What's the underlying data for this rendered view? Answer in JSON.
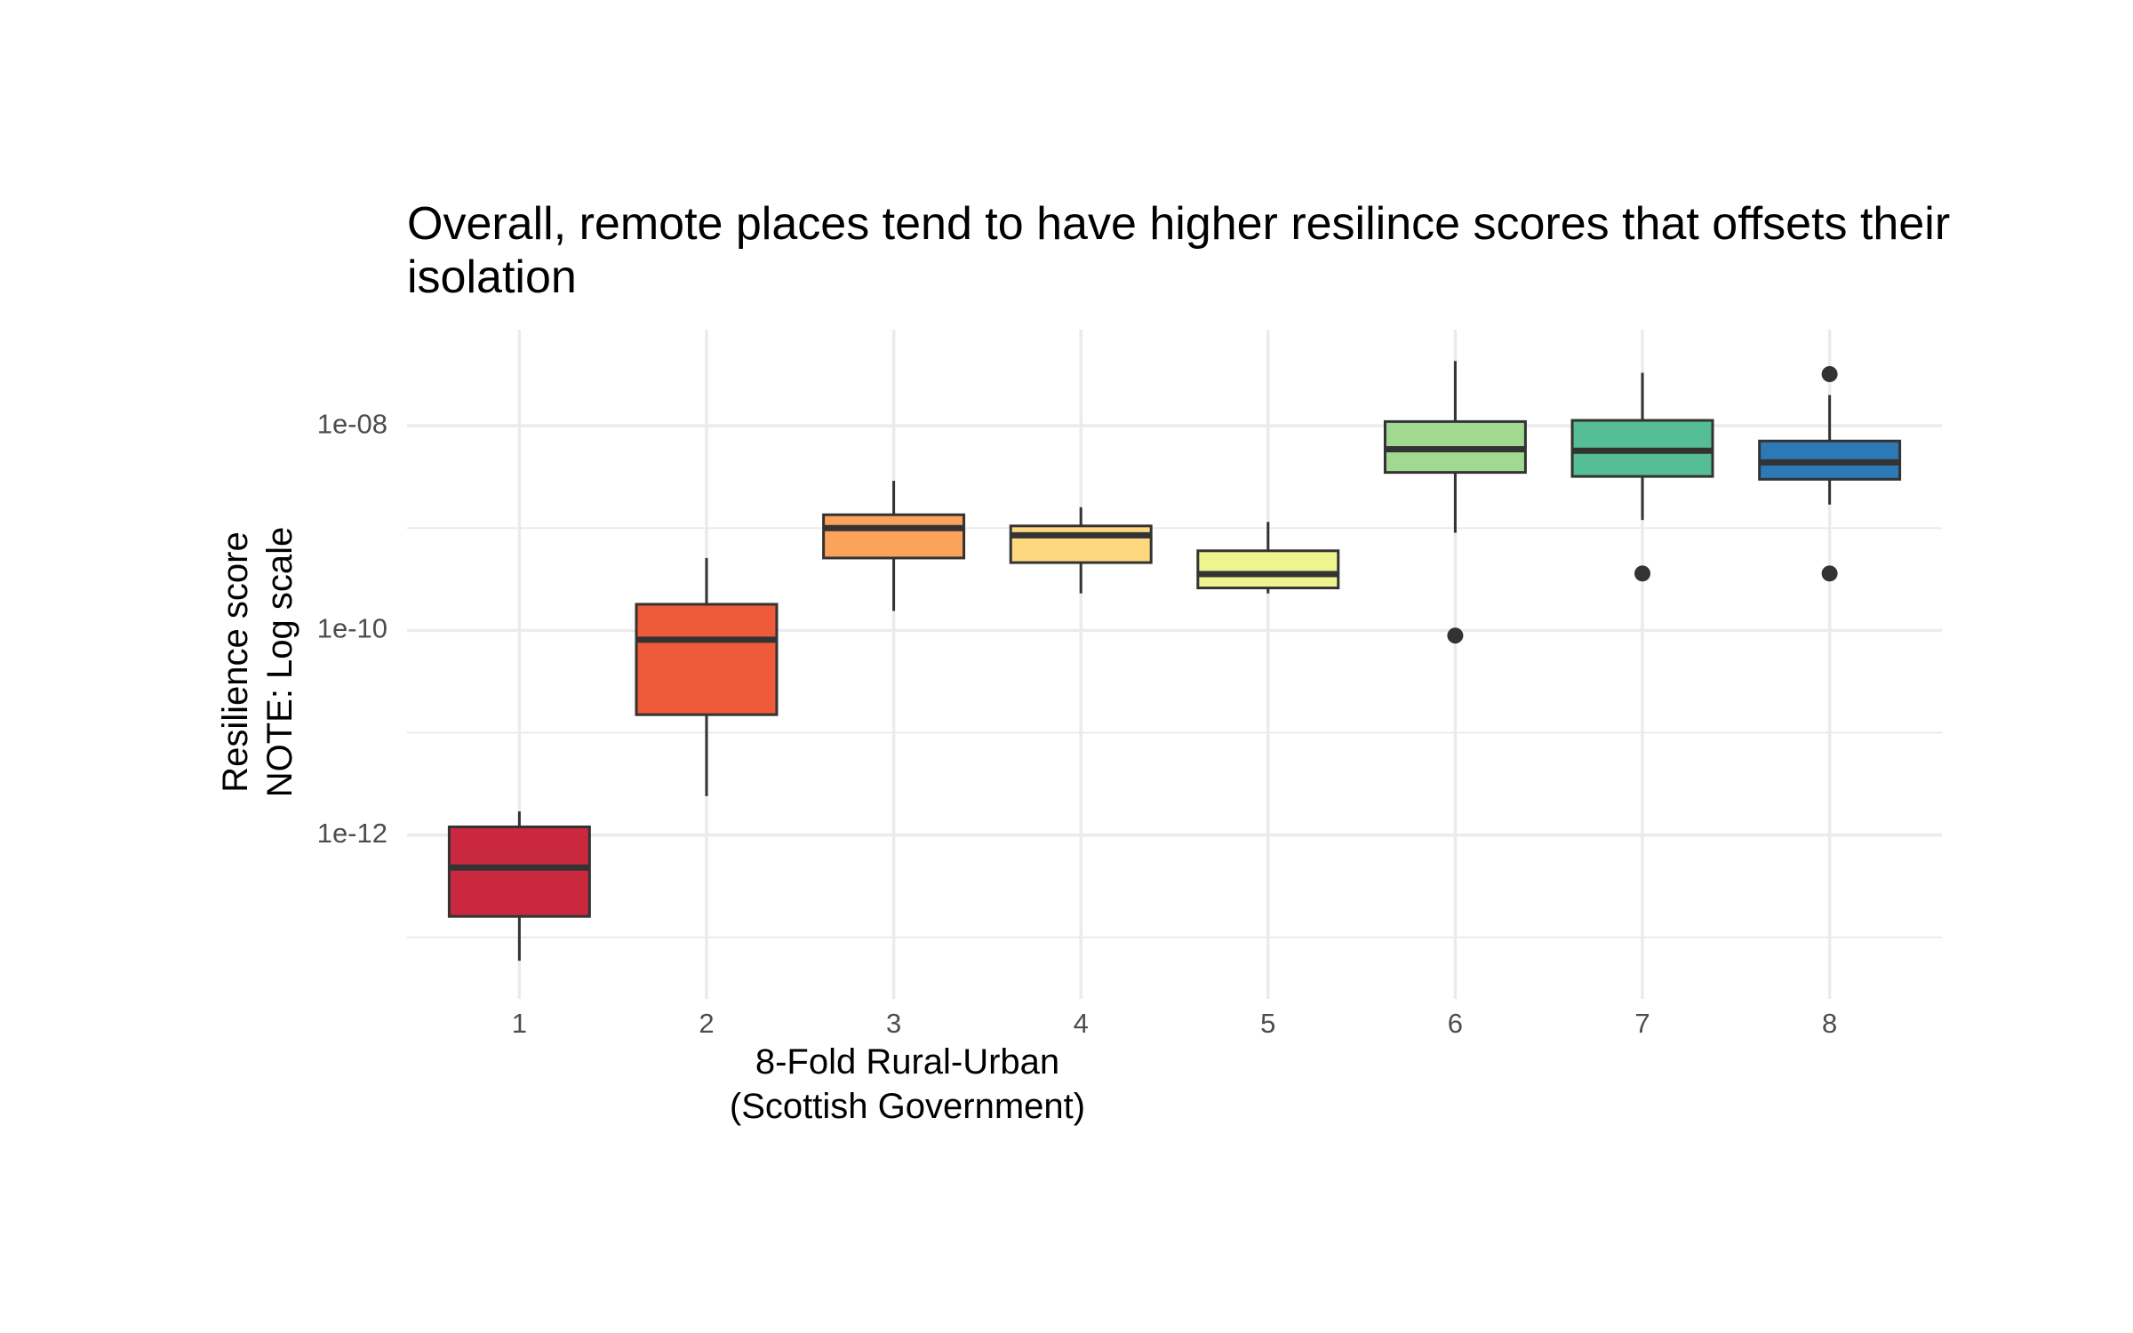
{
  "chart_data": {
    "type": "box",
    "title": "Overall, remote places tend to have higher resilince scores that offsets their isolation",
    "x_label": "8-Fold Rural-Urban\n(Scottish Government)",
    "y_label": "Resilience score\nNOTE: Log scale",
    "log_y": true,
    "grid": true,
    "ylim": [
      2.5e-14,
      8.7e-08
    ],
    "yticks": [
      {
        "value": 1e-08,
        "label": "1e-08"
      },
      {
        "value": 1e-10,
        "label": "1e-10"
      },
      {
        "value": 1e-12,
        "label": "1e-12"
      }
    ],
    "yminor": [
      1e-09,
      1e-11,
      1e-13
    ],
    "categories": [
      "1",
      "2",
      "3",
      "4",
      "5",
      "6",
      "7",
      "8"
    ],
    "boxes": [
      {
        "color": "#c9283e",
        "low": 5.9e-14,
        "q1": 1.6e-13,
        "median": 4.8e-13,
        "q3": 1.2e-12,
        "high": 1.7e-12,
        "outliers": []
      },
      {
        "color": "#ef5a3a",
        "low": 2.4e-12,
        "q1": 1.5e-11,
        "median": 8.1e-11,
        "q3": 1.8e-10,
        "high": 5.1e-10,
        "outliers": []
      },
      {
        "color": "#fba35a",
        "low": 1.55e-10,
        "q1": 5.1e-10,
        "median": 1e-09,
        "q3": 1.35e-09,
        "high": 2.9e-09,
        "outliers": []
      },
      {
        "color": "#fed87f",
        "low": 2.3e-10,
        "q1": 4.6e-10,
        "median": 8.5e-10,
        "q3": 1.05e-09,
        "high": 1.6e-09,
        "outliers": []
      },
      {
        "color": "#eef58e",
        "low": 2.3e-10,
        "q1": 2.6e-10,
        "median": 3.55e-10,
        "q3": 6e-10,
        "high": 1.15e-09,
        "outliers": []
      },
      {
        "color": "#a1d991",
        "low": 9e-10,
        "q1": 3.5e-09,
        "median": 5.9e-09,
        "q3": 1.1e-08,
        "high": 4.3e-08,
        "outliers": [
          8.9e-11
        ]
      },
      {
        "color": "#55be97",
        "low": 1.2e-09,
        "q1": 3.2e-09,
        "median": 5.7e-09,
        "q3": 1.13e-08,
        "high": 3.3e-08,
        "outliers": [
          3.6e-10
        ]
      },
      {
        "color": "#2c79b5",
        "low": 1.7e-09,
        "q1": 3e-09,
        "median": 4.4e-09,
        "q3": 7.1e-09,
        "high": 2e-08,
        "outliers": [
          3.2e-08,
          3.6e-10
        ]
      }
    ]
  }
}
